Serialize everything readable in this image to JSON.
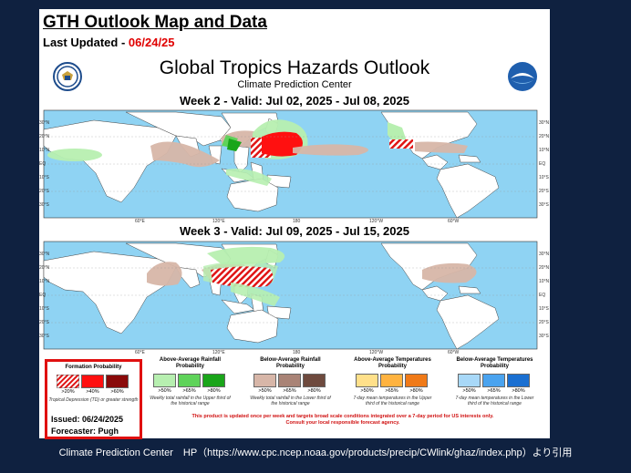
{
  "header": {
    "title": "GTH Outlook Map and Data",
    "updated_label": "Last Updated - ",
    "updated_date": "06/24/25"
  },
  "map": {
    "title": "Global Tropics Hazards Outlook",
    "subtitle": "Climate Prediction Center",
    "week2": "Week 2 - Valid: Jul 02, 2025 - Jul 08, 2025",
    "week3": "Week 3 - Valid: Jul 09, 2025 - Jul 15, 2025",
    "lat_labels_left": [
      "30°N",
      "20°N",
      "10°N",
      "EQ",
      "10°S",
      "20°S",
      "30°S"
    ],
    "lat_labels_right": [
      "30°N",
      "20°N",
      "10°N",
      "EQ",
      "10°S",
      "20°S",
      "30°S"
    ],
    "lon_labels": [
      "60°E",
      "120°E",
      "180",
      "120°W",
      "60°W"
    ]
  },
  "legend": {
    "formation": {
      "title": "Formation Probability",
      "pcts": [
        ">20%",
        ">40%",
        ">60%"
      ],
      "desc": "Tropical Depression (TD) or greater strength"
    },
    "above_rain": {
      "title": "Above-Average Rainfall Probability",
      "pcts": [
        ">50%",
        ">65%",
        ">80%"
      ],
      "desc": "Weekly total rainfall in the Upper third of the historical range"
    },
    "below_rain": {
      "title": "Below-Average Rainfall Probability",
      "pcts": [
        ">50%",
        ">65%",
        ">80%"
      ],
      "desc": "Weekly total rainfall in the Lower third of the historical range"
    },
    "above_temp": {
      "title": "Above-Average Temperatures Probability",
      "pcts": [
        ">50%",
        ">65%",
        ">80%"
      ],
      "desc": "7-day mean temperatures in the Upper third of the historical range"
    },
    "below_temp": {
      "title": "Below-Average Temperatures Probability",
      "pcts": [
        ">50%",
        ">65%",
        ">80%"
      ],
      "desc": "7-day mean temperatures in the Lower third of the historical range"
    },
    "issued": "Issued: 06/24/2025",
    "forecaster": "Forecaster: Pugh",
    "notice1": "This product is updated once per week and targets broad scale conditions integrated over a 7-day period for US interests only.",
    "notice2": "Consult your local responsible forecast agency."
  },
  "caption": "Climate Prediction Center　HP（https://www.cpc.ncep.noaa.gov/products/precip/CWlink/ghaz/index.php）より引用",
  "colors": {
    "ocean": "#8fd3f3",
    "land": "#ffffff",
    "form1": "#e02020",
    "form2": "#ff1010",
    "form3": "#8a0a0a",
    "rain_up": [
      "#b7efb0",
      "#5fd35a",
      "#1aa51a"
    ],
    "rain_low": [
      "#d7b6a8",
      "#a98376",
      "#6e4a3e"
    ],
    "temp_up": [
      "#ffe08a",
      "#ffb340",
      "#f07a18"
    ],
    "temp_low": [
      "#a8d8f8",
      "#4aa3ef",
      "#1a6fd1"
    ]
  }
}
